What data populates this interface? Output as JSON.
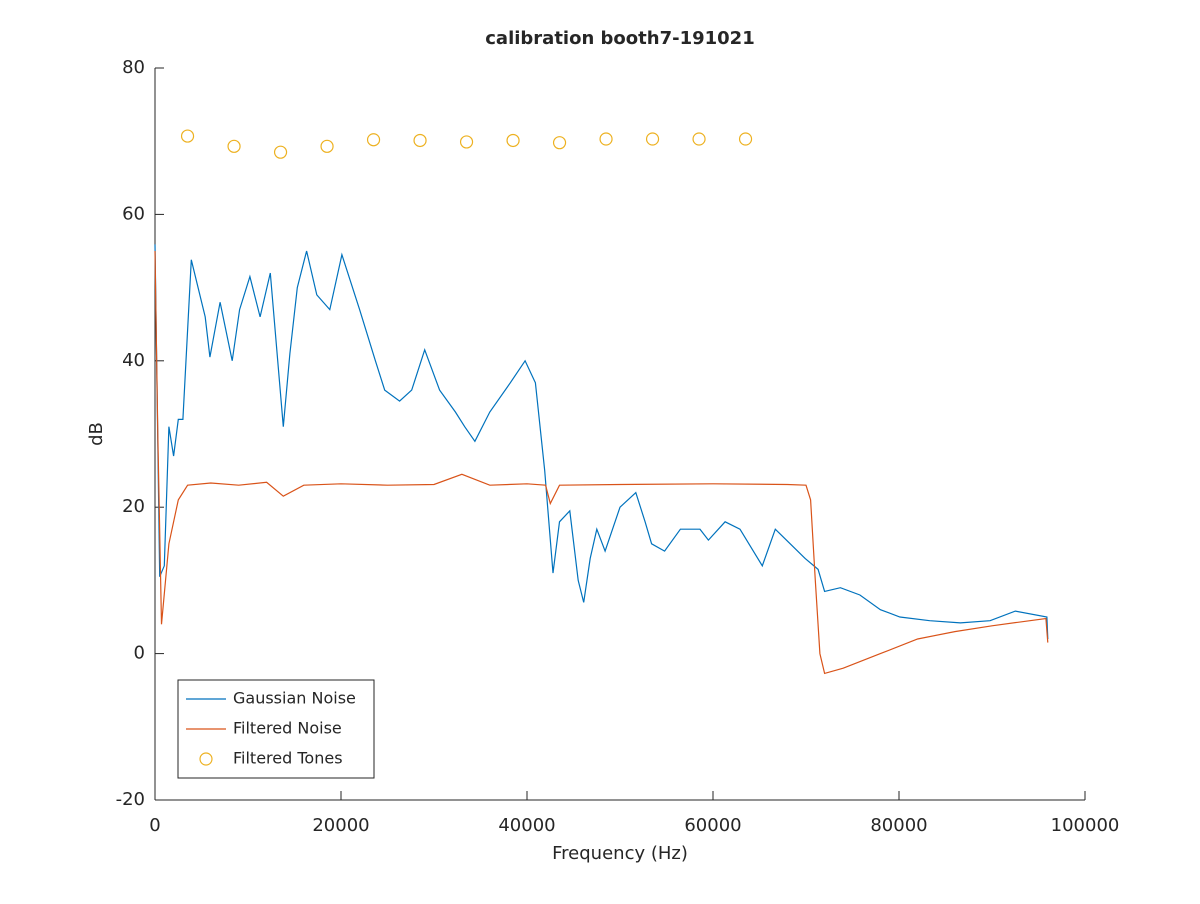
{
  "chart_data": {
    "type": "line",
    "title": "calibration booth7-191021",
    "x_label": "Frequency (Hz)",
    "y_label": "dB",
    "xlim": [
      0,
      100000
    ],
    "xticks": [
      0,
      20000,
      40000,
      60000,
      80000,
      100000
    ],
    "ylim": [
      -20,
      80
    ],
    "yticks": [
      -20,
      0,
      20,
      40,
      60,
      80
    ],
    "legend": "lower-left",
    "series": [
      {
        "name": "Gaussian Noise",
        "type": "line",
        "color": "#0072bd",
        "x": [
          0,
          500,
          1000,
          1500,
          2000,
          2500,
          3000,
          3900,
          5400,
          5900,
          7000,
          8300,
          9100,
          10200,
          11300,
          12400,
          13800,
          14500,
          15300,
          16300,
          17400,
          18800,
          20100,
          22000,
          23700,
          24700,
          26300,
          27600,
          29000,
          30600,
          32300,
          33300,
          34400,
          36000,
          38200,
          39800,
          40900,
          41900,
          42800,
          43500,
          44600,
          45500,
          46100,
          46800,
          47500,
          48400,
          50000,
          51700,
          52700,
          53400,
          54800,
          56500,
          58600,
          59500,
          61300,
          62900,
          65300,
          66700,
          68300,
          69900,
          71300,
          72000,
          73700,
          75800,
          78000,
          80100,
          83300,
          86600,
          89800,
          92500,
          95900,
          96000
        ],
        "values": [
          55.9,
          10.5,
          12,
          31,
          27,
          32,
          32,
          53.8,
          46,
          40.5,
          48,
          40,
          47,
          51.5,
          46,
          52,
          31,
          41,
          50,
          55,
          49,
          47,
          54.5,
          47,
          40,
          36,
          34.5,
          36,
          41.5,
          36,
          33,
          31,
          29,
          33,
          37,
          40,
          37,
          25,
          11,
          18,
          19.5,
          10,
          7,
          13,
          17,
          14,
          20,
          22,
          18,
          15,
          14,
          17,
          17,
          15.5,
          18,
          17,
          12,
          17,
          15,
          13,
          11.5,
          8.5,
          9,
          8,
          6,
          5,
          4.5,
          4.2,
          4.5,
          5.8,
          5,
          2
        ]
      },
      {
        "name": "Filtered Noise",
        "type": "line",
        "color": "#d95319",
        "x": [
          0,
          300,
          700,
          1500,
          2500,
          3500,
          6000,
          9000,
          12000,
          13800,
          16000,
          20000,
          25000,
          30000,
          33000,
          36000,
          40000,
          42000,
          42500,
          43500,
          50000,
          60000,
          68000,
          70000,
          70500,
          71000,
          71500,
          72000,
          74000,
          78000,
          82000,
          86000,
          90000,
          95800,
          96000
        ],
        "values": [
          55,
          30,
          4,
          15,
          21,
          23,
          23.3,
          23,
          23.4,
          21.5,
          23,
          23.2,
          23,
          23.1,
          24.5,
          23,
          23.2,
          23,
          20.5,
          23,
          23.1,
          23.2,
          23.1,
          23,
          21,
          10,
          0,
          -2.7,
          -2,
          0,
          2,
          3,
          3.8,
          4.8,
          1.5
        ]
      },
      {
        "name": "Filtered Tones",
        "type": "scatter",
        "color": "#edb120",
        "x": [
          3500,
          8500,
          13500,
          18500,
          23500,
          28500,
          33500,
          38500,
          43500,
          48500,
          53500,
          58500,
          63500
        ],
        "values": [
          70.7,
          69.3,
          68.5,
          69.3,
          70.2,
          70.1,
          69.9,
          70.1,
          69.8,
          70.3,
          70.3,
          70.3,
          70.3
        ]
      }
    ]
  }
}
